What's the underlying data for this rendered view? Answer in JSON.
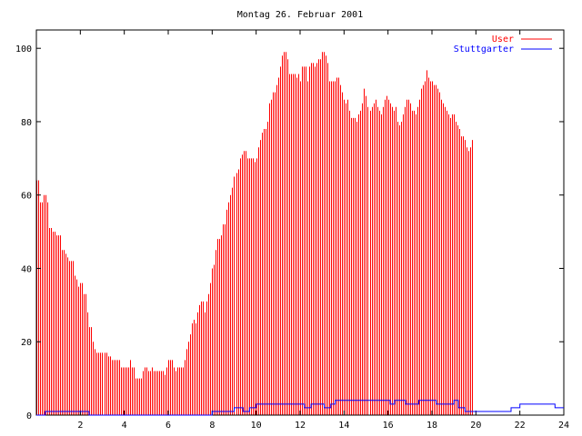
{
  "chart_data": {
    "type": "bar",
    "title": "Montag 26. Februar 2001",
    "xlabel": "",
    "ylabel": "",
    "xlim": [
      0,
      24
    ],
    "ylim": [
      0,
      105
    ],
    "x_ticks": [
      2,
      4,
      6,
      8,
      10,
      12,
      14,
      16,
      18,
      20,
      22,
      24
    ],
    "y_ticks": [
      0,
      20,
      40,
      60,
      80,
      100
    ],
    "legend_position": "top-right",
    "series": [
      {
        "name": "User",
        "style": "impulses",
        "color": "#ff0000",
        "step_hours": 0.08333,
        "values": [
          64,
          64,
          58,
          58,
          60,
          60,
          58,
          51,
          51,
          50,
          50,
          49,
          49,
          49,
          45,
          45,
          44,
          43,
          42,
          42,
          42,
          38,
          37,
          35,
          36,
          36,
          33,
          33,
          28,
          24,
          24,
          20,
          18,
          17,
          17,
          17,
          17,
          17,
          17,
          16,
          16,
          15,
          15,
          15,
          15,
          15,
          13,
          13,
          13,
          13,
          13,
          15,
          13,
          13,
          10,
          10,
          10,
          10,
          12,
          13,
          13,
          12,
          12,
          13,
          12,
          12,
          12,
          12,
          12,
          12,
          11,
          13,
          15,
          15,
          15,
          13,
          12,
          13,
          13,
          13,
          13,
          15,
          18,
          20,
          22,
          25,
          26,
          25,
          28,
          30,
          31,
          31,
          28,
          31,
          33,
          36,
          40,
          41,
          45,
          48,
          48,
          49,
          52,
          52,
          56,
          58,
          60,
          62,
          65,
          66,
          67,
          70,
          71,
          72,
          72,
          70,
          70,
          70,
          70,
          69,
          70,
          73,
          75,
          77,
          78,
          78,
          80,
          85,
          86,
          88,
          88,
          90,
          92,
          95,
          98,
          99,
          99,
          97,
          93,
          93,
          93,
          93,
          92,
          93,
          91,
          95,
          95,
          95,
          91,
          95,
          96,
          96,
          95,
          96,
          97,
          97,
          99,
          99,
          98,
          96,
          91,
          91,
          91,
          91,
          92,
          92,
          90,
          88,
          86,
          85,
          86,
          83,
          81,
          81,
          81,
          80,
          82,
          83,
          85,
          89,
          87,
          84,
          83,
          84,
          85,
          86,
          84,
          83,
          82,
          84,
          86,
          87,
          86,
          85,
          84,
          83,
          84,
          80,
          79,
          80,
          82,
          84,
          86,
          86,
          85,
          83,
          83,
          82,
          84,
          86,
          89,
          90,
          91,
          94,
          92,
          91,
          91,
          90,
          90,
          89,
          88,
          86,
          85,
          84,
          83,
          82,
          81,
          82,
          82,
          80,
          79,
          78,
          76,
          76,
          75,
          73,
          72,
          73,
          75
        ]
      },
      {
        "name": "Stuttgarter",
        "style": "steps",
        "color": "#0000ff",
        "points": [
          [
            0,
            0
          ],
          [
            0.4,
            0
          ],
          [
            0.4,
            1
          ],
          [
            2.4,
            1
          ],
          [
            2.4,
            0
          ],
          [
            8.0,
            0
          ],
          [
            8.0,
            1
          ],
          [
            9.0,
            1
          ],
          [
            9.0,
            2
          ],
          [
            9.4,
            2
          ],
          [
            9.4,
            1
          ],
          [
            9.7,
            1
          ],
          [
            9.7,
            2
          ],
          [
            10.0,
            2
          ],
          [
            10.0,
            3
          ],
          [
            12.2,
            3
          ],
          [
            12.2,
            2
          ],
          [
            12.5,
            2
          ],
          [
            12.5,
            3
          ],
          [
            13.1,
            3
          ],
          [
            13.1,
            2
          ],
          [
            13.4,
            2
          ],
          [
            13.4,
            3
          ],
          [
            13.6,
            3
          ],
          [
            13.6,
            4
          ],
          [
            16.1,
            4
          ],
          [
            16.1,
            3
          ],
          [
            16.3,
            3
          ],
          [
            16.3,
            4
          ],
          [
            16.8,
            4
          ],
          [
            16.8,
            3
          ],
          [
            17.4,
            3
          ],
          [
            17.4,
            4
          ],
          [
            18.2,
            4
          ],
          [
            18.2,
            3
          ],
          [
            19.0,
            3
          ],
          [
            19.0,
            4
          ],
          [
            19.2,
            4
          ],
          [
            19.2,
            2
          ],
          [
            19.5,
            2
          ],
          [
            19.5,
            1
          ],
          [
            21.6,
            1
          ],
          [
            21.6,
            2
          ],
          [
            22.0,
            2
          ],
          [
            22.0,
            3
          ],
          [
            23.6,
            3
          ],
          [
            23.6,
            2
          ],
          [
            24.0,
            2
          ]
        ]
      }
    ]
  }
}
